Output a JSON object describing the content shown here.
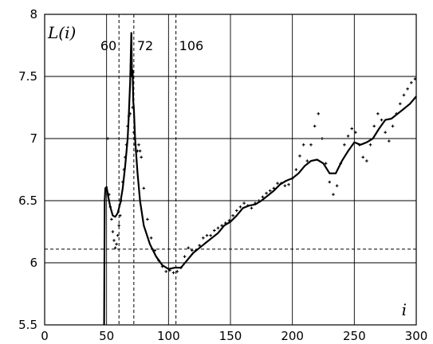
{
  "chart_data": {
    "type": "line",
    "xlim": [
      0,
      300
    ],
    "ylim": [
      5.5,
      8
    ],
    "grid": true,
    "x_ticks": [
      0,
      50,
      100,
      150,
      200,
      250,
      300
    ],
    "x_tick_labels": [
      "0",
      "50",
      "100",
      "150",
      "200",
      "250",
      "300"
    ],
    "y_ticks": [
      5.5,
      6,
      6.5,
      7,
      7.5,
      8
    ],
    "y_tick_labels": [
      "5.5",
      "6",
      "6.5",
      "7",
      "7.5",
      "8"
    ],
    "xlabel": "i",
    "ylabel": "L(i)",
    "vertical_markers": [
      {
        "x": 60,
        "label": "60"
      },
      {
        "x": 72,
        "label": "72"
      },
      {
        "x": 106,
        "label": "106"
      }
    ],
    "horizontal_reference": {
      "y": 6.11,
      "style": "dashed"
    },
    "series": [
      {
        "style": "solid-line",
        "x": [
          48,
          48.5,
          49,
          50,
          51,
          53,
          55,
          57,
          59,
          61,
          63,
          65,
          67,
          68,
          69,
          70,
          70.5,
          71,
          71.5,
          72,
          73,
          75,
          77,
          80,
          85,
          90,
          95,
          100,
          105,
          110,
          115,
          120,
          125,
          130,
          135,
          140,
          145,
          150,
          155,
          160,
          165,
          170,
          175,
          180,
          185,
          190,
          195,
          200,
          205,
          210,
          215,
          220,
          225,
          230,
          235,
          240,
          245,
          250,
          255,
          260,
          265,
          270,
          275,
          280,
          285,
          290,
          295,
          300
        ],
        "y": [
          5.5,
          6.5,
          6.6,
          6.61,
          6.55,
          6.45,
          6.38,
          6.37,
          6.4,
          6.48,
          6.6,
          6.78,
          7.0,
          7.2,
          7.45,
          7.85,
          7.5,
          7.55,
          7.3,
          7.25,
          7.0,
          6.72,
          6.5,
          6.3,
          6.15,
          6.05,
          5.98,
          5.95,
          5.96,
          5.96,
          6.02,
          6.08,
          6.12,
          6.16,
          6.2,
          6.24,
          6.3,
          6.33,
          6.38,
          6.44,
          6.46,
          6.47,
          6.5,
          6.54,
          6.58,
          6.63,
          6.66,
          6.68,
          6.72,
          6.78,
          6.82,
          6.83,
          6.8,
          6.72,
          6.72,
          6.82,
          6.9,
          6.97,
          6.95,
          6.97,
          7.0,
          7.08,
          7.15,
          7.16,
          7.2,
          7.24,
          7.28,
          7.34
        ]
      },
      {
        "style": "dots",
        "x": [
          50,
          51,
          52,
          53,
          54,
          55,
          56,
          57,
          58,
          59,
          60,
          61,
          62,
          63,
          64,
          65,
          66,
          67,
          68,
          69,
          70,
          71,
          72,
          73,
          74,
          75,
          76,
          77,
          78,
          80,
          83,
          86,
          89,
          92,
          95,
          98,
          101,
          104,
          107,
          110,
          113,
          116,
          119,
          122,
          125,
          128,
          131,
          134,
          137,
          140,
          143,
          146,
          149,
          152,
          155,
          158,
          161,
          164,
          167,
          170,
          173,
          176,
          179,
          182,
          185,
          188,
          191,
          194,
          197,
          200,
          203,
          206,
          209,
          212,
          215,
          218,
          221,
          224,
          227,
          230,
          233,
          236,
          239,
          242,
          245,
          248,
          251,
          254,
          257,
          260,
          263,
          266,
          269,
          272,
          275,
          278,
          281,
          284,
          287,
          290,
          293,
          296,
          299
        ],
        "y": [
          6.58,
          7.0,
          6.55,
          6.45,
          6.35,
          6.25,
          6.18,
          6.12,
          6.15,
          6.22,
          6.3,
          6.38,
          6.5,
          6.65,
          6.75,
          6.85,
          6.95,
          7.1,
          7.18,
          7.2,
          7.55,
          7.25,
          7.05,
          6.95,
          6.9,
          6.9,
          6.95,
          6.9,
          6.85,
          6.6,
          6.35,
          6.2,
          6.1,
          6.02,
          5.97,
          5.93,
          5.94,
          5.92,
          5.93,
          5.96,
          6.05,
          6.12,
          6.1,
          6.1,
          6.14,
          6.2,
          6.22,
          6.22,
          6.26,
          6.28,
          6.3,
          6.32,
          6.34,
          6.38,
          6.42,
          6.45,
          6.48,
          6.46,
          6.44,
          6.48,
          6.5,
          6.53,
          6.56,
          6.58,
          6.6,
          6.64,
          6.64,
          6.62,
          6.63,
          6.68,
          6.75,
          6.86,
          6.95,
          6.82,
          6.95,
          7.1,
          7.2,
          7.0,
          6.8,
          6.65,
          6.55,
          6.62,
          6.8,
          6.95,
          7.02,
          7.08,
          7.05,
          6.95,
          6.85,
          6.82,
          6.95,
          7.1,
          7.2,
          7.15,
          7.05,
          6.98,
          7.1,
          7.2,
          7.28,
          7.35,
          7.4,
          7.45,
          7.48
        ]
      }
    ]
  }
}
